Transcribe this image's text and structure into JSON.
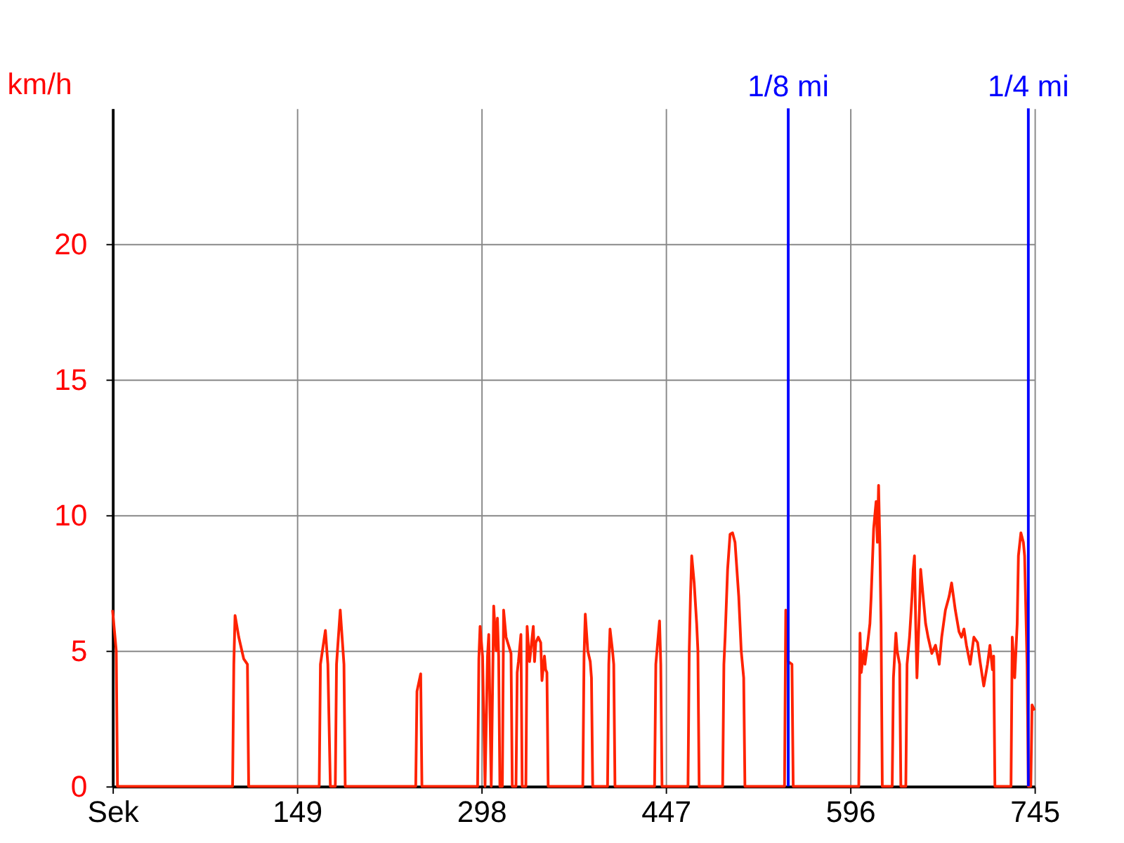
{
  "chart_data": {
    "type": "line",
    "xlabel": null,
    "ylabel": "km/h",
    "x": [
      0,
      2,
      3,
      4,
      97,
      98,
      99,
      102,
      106,
      109,
      110,
      167,
      168,
      172,
      174,
      176,
      180,
      181,
      184,
      187,
      188,
      245,
      246,
      249,
      250,
      295,
      296,
      297,
      299,
      301,
      303,
      304,
      306,
      308,
      310,
      311,
      312,
      313,
      315,
      316,
      318,
      320,
      322,
      323,
      326,
      327,
      328,
      330,
      331,
      334,
      335,
      336,
      337,
      340,
      341,
      342,
      344,
      346,
      347,
      349,
      350,
      351,
      352,
      380,
      381,
      382,
      384,
      386,
      387,
      388,
      400,
      401,
      402,
      404,
      405,
      406,
      438,
      439,
      442,
      443,
      444,
      465,
      466,
      467,
      468,
      470,
      472,
      473,
      474,
      493,
      494,
      495,
      497,
      499,
      501,
      503,
      506,
      508,
      510,
      511,
      543,
      544,
      546,
      549,
      550,
      603,
      604,
      605,
      607,
      608,
      610,
      612,
      613,
      615,
      617,
      618,
      619,
      620,
      621,
      622,
      630,
      631,
      633,
      634,
      636,
      637,
      641,
      642,
      644,
      646,
      647,
      648,
      649,
      650,
      652,
      653,
      655,
      657,
      659,
      662,
      665,
      668,
      670,
      673,
      676,
      678,
      681,
      684,
      686,
      688,
      690,
      693,
      696,
      699,
      701,
      704,
      707,
      709,
      711,
      712,
      713,
      726,
      727,
      729,
      731,
      732,
      734,
      736,
      737,
      739,
      740,
      742,
      743,
      745
    ],
    "series": [
      {
        "color": "#ff2200",
        "values": [
          6.5,
          5.5,
          5,
          0,
          0,
          4.5,
          6.3,
          5.5,
          4.7,
          4.5,
          0,
          0,
          4.5,
          5.75,
          4.5,
          0,
          0,
          4.5,
          6.5,
          4.5,
          0,
          0,
          3.5,
          4.15,
          0,
          0,
          4.7,
          5.9,
          4.8,
          0,
          4.8,
          5.6,
          0,
          6.65,
          5,
          6.2,
          4.8,
          0,
          0,
          6.5,
          5.5,
          5.2,
          4.9,
          0,
          0,
          4.2,
          4.6,
          5.6,
          0,
          0,
          5.9,
          5.2,
          4.6,
          5.9,
          4.6,
          5.3,
          5.5,
          5.3,
          3.9,
          4.8,
          4.3,
          4.2,
          0,
          0,
          4.8,
          6.35,
          5,
          4.6,
          4,
          0,
          0,
          4.5,
          5.8,
          5,
          4.5,
          0,
          0,
          4.5,
          6.1,
          4.5,
          0,
          0,
          5,
          7,
          8.5,
          7.5,
          6,
          5,
          0,
          0,
          4.5,
          5.5,
          8,
          9.3,
          9.35,
          9,
          7,
          5,
          4,
          0,
          0,
          6.5,
          4.6,
          4.5,
          0,
          0,
          5.65,
          4.2,
          5,
          4.5,
          5.2,
          6,
          7,
          9.5,
          10.5,
          9,
          11.1,
          9,
          6,
          0,
          0,
          4,
          5.65,
          5,
          4.5,
          0,
          0,
          4.5,
          5.5,
          7,
          8,
          8.5,
          6,
          4,
          6.5,
          8,
          7,
          6,
          5.5,
          4.9,
          5.2,
          4.5,
          5.5,
          6.5,
          7,
          7.5,
          6.5,
          5.7,
          5.5,
          5.8,
          5.2,
          4.5,
          5.5,
          5.3,
          4.6,
          3.7,
          4.5,
          5.2,
          4.3,
          4.8,
          0,
          0,
          5.5,
          4,
          6,
          8.5,
          9.35,
          9,
          8.5,
          4.5,
          0,
          0,
          3,
          2.8
        ]
      }
    ],
    "xlim": [
      0,
      745
    ],
    "xticks": [
      {
        "value": 0,
        "label": "Sek"
      },
      149,
      298,
      447,
      596,
      745
    ],
    "ylim": [
      0,
      25
    ],
    "yticks": [
      0,
      5,
      10,
      15,
      20
    ],
    "grid": true,
    "marker": "none",
    "line_style": "solid",
    "ref_lines": [
      {
        "axis": "x",
        "value": 546,
        "label": "1/8 mi",
        "color": "#0000ff"
      },
      {
        "axis": "x",
        "value": 740,
        "label": "1/4 mi",
        "color": "#0000ff"
      }
    ]
  }
}
